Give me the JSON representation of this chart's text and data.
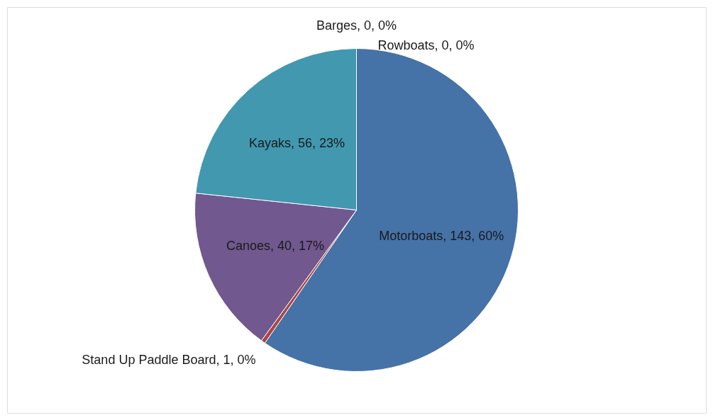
{
  "chart_data": {
    "type": "pie",
    "categories": [
      "Rowboats",
      "Motorboats",
      "Stand Up Paddle Board",
      "Canoes",
      "Kayaks",
      "Barges"
    ],
    "values": [
      0,
      143,
      1,
      40,
      56,
      0
    ],
    "value_labels": [
      ", 0, 0%",
      ", 143, 60%",
      ", 1, 0%",
      ", 40, 17%",
      ", 56, 23%",
      ", 0, 0%"
    ],
    "colors": [
      "#89a54e",
      "#4572a7",
      "#aa4643",
      "#71588f",
      "#4198af",
      "#db843d"
    ],
    "legend": false
  }
}
